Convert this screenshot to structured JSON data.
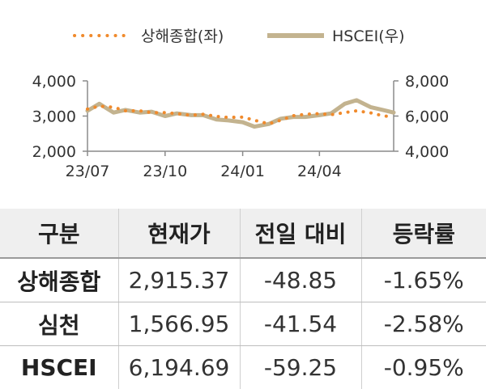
{
  "chart_data": {
    "type": "line",
    "legend_position": "top",
    "series": [
      {
        "name": "상해종합(좌)",
        "axis": "left",
        "style": "dotted",
        "color": "#f08a2c",
        "dates": [
          "2023-07-01",
          "2023-07-15",
          "2023-08-01",
          "2023-08-15",
          "2023-09-01",
          "2023-09-15",
          "2023-10-01",
          "2023-10-15",
          "2023-11-01",
          "2023-11-15",
          "2023-12-01",
          "2023-12-15",
          "2024-01-01",
          "2024-01-15",
          "2024-02-01",
          "2024-02-15",
          "2024-03-01",
          "2024-03-15",
          "2024-04-01",
          "2024-04-15",
          "2024-05-01",
          "2024-05-15",
          "2024-06-01",
          "2024-06-15",
          "2024-06-28"
        ],
        "values": [
          3200,
          3280,
          3250,
          3150,
          3150,
          3100,
          3100,
          3070,
          3020,
          3050,
          2990,
          2960,
          2970,
          2880,
          2780,
          2880,
          3010,
          3050,
          3070,
          3040,
          3100,
          3150,
          3090,
          3010,
          2970
        ]
      },
      {
        "name": "HSCEI(우)",
        "axis": "right",
        "style": "solid",
        "color": "#c3b38f",
        "dates": [
          "2023-07-01",
          "2023-07-15",
          "2023-08-01",
          "2023-08-15",
          "2023-09-01",
          "2023-09-15",
          "2023-10-01",
          "2023-10-15",
          "2023-11-01",
          "2023-11-15",
          "2023-12-01",
          "2023-12-15",
          "2024-01-01",
          "2024-01-15",
          "2024-02-01",
          "2024-02-15",
          "2024-03-01",
          "2024-03-15",
          "2024-04-01",
          "2024-04-15",
          "2024-05-01",
          "2024-05-15",
          "2024-06-01",
          "2024-06-15",
          "2024-06-28"
        ],
        "values": [
          6300,
          6700,
          6200,
          6350,
          6200,
          6250,
          6000,
          6150,
          6050,
          6050,
          5800,
          5750,
          5650,
          5400,
          5550,
          5850,
          5950,
          5950,
          6050,
          6150,
          6700,
          6900,
          6500,
          6350,
          6200
        ]
      }
    ],
    "y_left": {
      "min": 2000,
      "max": 4000,
      "ticks": [
        "2,000",
        "3,000",
        "4,000"
      ]
    },
    "y_right": {
      "min": 4000,
      "max": 8000,
      "ticks": [
        "4,000",
        "6,000",
        "8,000"
      ]
    },
    "x_range": [
      "2023-07-01",
      "2024-06-28"
    ],
    "x_ticks": [
      {
        "date": "2023-07-01",
        "label": "23/07"
      },
      {
        "date": "2023-10-01",
        "label": "23/10"
      },
      {
        "date": "2024-01-01",
        "label": "24/01"
      },
      {
        "date": "2024-04-01",
        "label": "24/04"
      }
    ],
    "grid": false
  },
  "table": {
    "headers": [
      "구분",
      "현재가",
      "전일 대비",
      "등락률"
    ],
    "rows": [
      {
        "name": "상해종합",
        "price": "2,915.37",
        "change": "-48.85",
        "rate": "-1.65%"
      },
      {
        "name": "심천",
        "price": "1,566.95",
        "change": "-41.54",
        "rate": "-2.58%"
      },
      {
        "name": "HSCEI",
        "price": "6,194.69",
        "change": "-59.25",
        "rate": "-0.95%"
      }
    ]
  }
}
